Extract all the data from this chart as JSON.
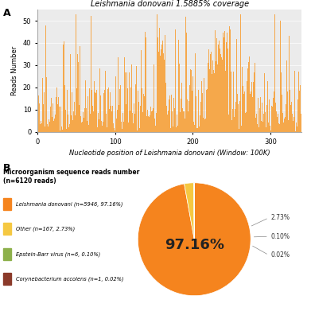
{
  "panel_a": {
    "title": "Leishmania donovani 1.5885% coverage",
    "xlabel": "Nucleotide position of Leishmania donovani (Window: 100K)",
    "ylabel": "Reads Number",
    "bar_color": "#F5A84B",
    "bar_edge_color": "#F5A84B",
    "bg_color": "#EBEBEB",
    "ylim": [
      0,
      55
    ],
    "xlim": [
      0,
      340
    ],
    "yticks": [
      0,
      10,
      20,
      30,
      40,
      50
    ],
    "xticks": [
      0,
      100,
      200,
      300
    ],
    "num_bars": 340,
    "seed": 42
  },
  "panel_b": {
    "title": "Microorganism sequence reads number\n(n=6120 reads)",
    "slices": [
      97.16,
      2.73,
      0.1,
      0.02
    ],
    "colors": [
      "#F5841E",
      "#F5C842",
      "#8DB04B",
      "#8B3A2A"
    ],
    "labels": [
      "Leishmania donovani (n=5946, 97.16%)",
      "Other (n=167, 2.73%)",
      "Epstein-Barr virus (n=6, 0.10%)",
      "Corynebacterium accolens (n=1, 0.02%)"
    ],
    "center_text": "97.16%",
    "pct_labels": [
      "",
      "2.73%",
      "0.10%",
      "0.02%"
    ],
    "startangle": 90,
    "bg_color": "#FFFFFF"
  }
}
